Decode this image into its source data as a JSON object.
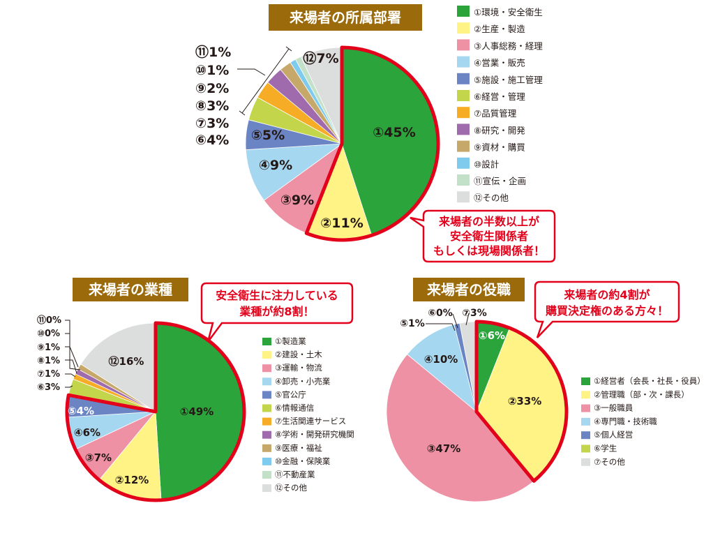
{
  "colors": {
    "c1": "#2ca43c",
    "c2": "#fef384",
    "c3": "#ee91a5",
    "c4": "#a6d7f0",
    "c5": "#6b85c4",
    "c6": "#c3d64b",
    "c7": "#f6ac25",
    "c8": "#a06bad",
    "c9": "#c5a86a",
    "c10": "#7fcbee",
    "c11": "#c2e1c8",
    "c12": "#dcdddd",
    "highlight": "#e3001b",
    "title_bg": "#9a6a0b"
  },
  "chart_data": [
    {
      "type": "pie",
      "title": "来場者の所属部署",
      "categories": [
        "①環境・安全衛生",
        "②生産・製造",
        "③人事総務・経理",
        "④営業・販売",
        "⑤施設・施工管理",
        "⑥経営・管理",
        "⑦品質管理",
        "⑧研究・開発",
        "⑨資材・購買",
        "⑩設計",
        "⑪宣伝・企画",
        "⑫その他"
      ],
      "values": [
        45,
        11,
        9,
        9,
        5,
        4,
        3,
        3,
        2,
        1,
        1,
        7
      ],
      "labels": [
        "①45%",
        "②11%",
        "③9%",
        "④9%",
        "⑤5%",
        "⑥4%",
        "⑦3%",
        "⑧3%",
        "⑨2%",
        "⑩1%",
        "⑪1%",
        "⑫7%"
      ],
      "highlighted": [
        0,
        1
      ],
      "callout": [
        "来場者の半数以上が",
        "安全衛生関係者",
        "もしくは現場関係者！"
      ]
    },
    {
      "type": "pie",
      "title": "来場者の業種",
      "categories": [
        "①製造業",
        "②建設・土木",
        "③運輸・物流",
        "④卸売・小売業",
        "⑤官公庁",
        "⑥情報通信",
        "⑦生活関連サービス",
        "⑧学術・開発研究機関",
        "⑨医療・福祉",
        "⑩金融・保険業",
        "⑪不動産業",
        "⑫その他"
      ],
      "values": [
        49,
        12,
        7,
        6,
        4,
        3,
        1,
        1,
        1,
        0,
        0,
        16
      ],
      "labels": [
        "①49%",
        "②12%",
        "③7%",
        "④6%",
        "⑤4%",
        "⑥3%",
        "⑦1%",
        "⑧1%",
        "⑨1%",
        "⑩0%",
        "⑪0%",
        "⑫16%"
      ],
      "highlighted": [
        0,
        1,
        2,
        3,
        4
      ],
      "callout": [
        "安全衛生に注力している",
        "業種が約8割！"
      ]
    },
    {
      "type": "pie",
      "title": "来場者の役職",
      "categories": [
        "①経営者（会長・社長・役員）",
        "②管理職（部・次・課長）",
        "③一般職員",
        "④専門職・技術職",
        "⑤個人経営",
        "⑥学生",
        "⑦その他"
      ],
      "values": [
        6,
        33,
        47,
        10,
        1,
        0,
        3
      ],
      "labels": [
        "①6%",
        "②33%",
        "③47%",
        "④10%",
        "⑤1%",
        "⑥0%",
        "⑦3%"
      ],
      "highlighted": [
        0,
        1
      ],
      "callout": [
        "来場者の約4割が",
        "購買決定権のある方々！"
      ]
    }
  ]
}
